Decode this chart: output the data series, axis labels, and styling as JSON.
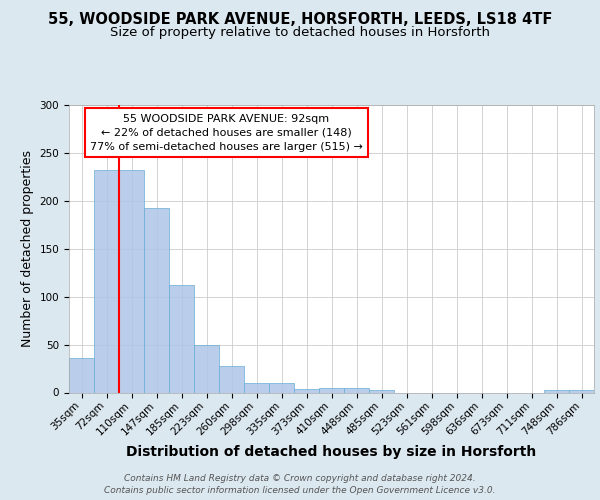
{
  "title_line1": "55, WOODSIDE PARK AVENUE, HORSFORTH, LEEDS, LS18 4TF",
  "title_line2": "Size of property relative to detached houses in Horsforth",
  "xlabel": "Distribution of detached houses by size in Horsforth",
  "ylabel": "Number of detached properties",
  "categories": [
    "35sqm",
    "72sqm",
    "110sqm",
    "147sqm",
    "185sqm",
    "223sqm",
    "260sqm",
    "298sqm",
    "335sqm",
    "373sqm",
    "410sqm",
    "448sqm",
    "485sqm",
    "523sqm",
    "561sqm",
    "598sqm",
    "636sqm",
    "673sqm",
    "711sqm",
    "748sqm",
    "786sqm"
  ],
  "values": [
    36,
    232,
    232,
    193,
    112,
    50,
    28,
    10,
    10,
    4,
    5,
    5,
    3,
    0,
    0,
    0,
    0,
    0,
    0,
    3,
    3
  ],
  "bar_color": "#aec6e8",
  "bar_edge_color": "#6aaed6",
  "vline_x": 1.5,
  "vline_color": "red",
  "annotation_text": "  55 WOODSIDE PARK AVENUE: 92sqm  \n← 22% of detached houses are smaller (148)\n77% of semi-detached houses are larger (515) →",
  "annotation_box_color": "white",
  "annotation_box_edge_color": "red",
  "ylim": [
    0,
    300
  ],
  "yticks": [
    0,
    50,
    100,
    150,
    200,
    250,
    300
  ],
  "footer_text": "Contains HM Land Registry data © Crown copyright and database right 2024.\nContains public sector information licensed under the Open Government Licence v3.0.",
  "bg_color": "#dce8f0",
  "plot_bg_color": "#ffffff",
  "title_fontsize": 10.5,
  "subtitle_fontsize": 9.5,
  "ylabel_fontsize": 9,
  "xlabel_fontsize": 10,
  "tick_fontsize": 7.5,
  "annot_fontsize": 8,
  "footer_fontsize": 6.5
}
